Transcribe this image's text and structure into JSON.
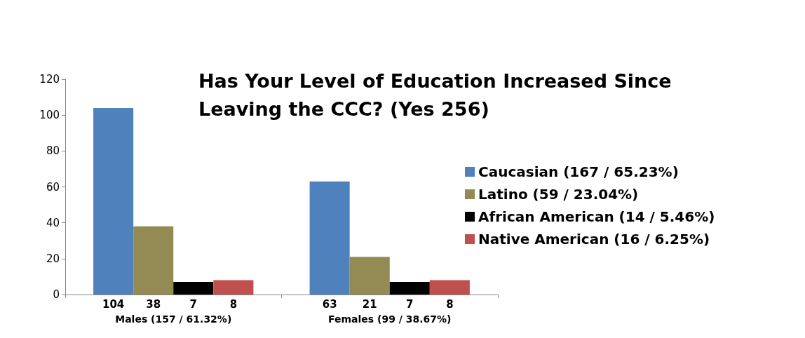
{
  "chart_data": {
    "type": "bar",
    "title": "Has Your Level of Education Increased Since Leaving the CCC? (Yes 256)",
    "categories": [
      "Males (157 / 61.32%)",
      "Females (99 / 38.67%)"
    ],
    "series": [
      {
        "name": "Caucasian (167 / 65.23%)",
        "color": "#4f81bd",
        "values": [
          104,
          63
        ]
      },
      {
        "name": "Latino (59 / 23.04%)",
        "color": "#948a54",
        "values": [
          38,
          21
        ]
      },
      {
        "name": "African American (14 / 5.46%)",
        "color": "#000000",
        "values": [
          7,
          7
        ]
      },
      {
        "name": "Native American (16 / 6.25%)",
        "color": "#c0504d",
        "values": [
          8,
          8
        ]
      }
    ],
    "ylim": [
      0,
      120
    ],
    "yticks": [
      0,
      20,
      40,
      60,
      80,
      100,
      120
    ],
    "grid": false,
    "legend": "right",
    "data_labels": true
  }
}
